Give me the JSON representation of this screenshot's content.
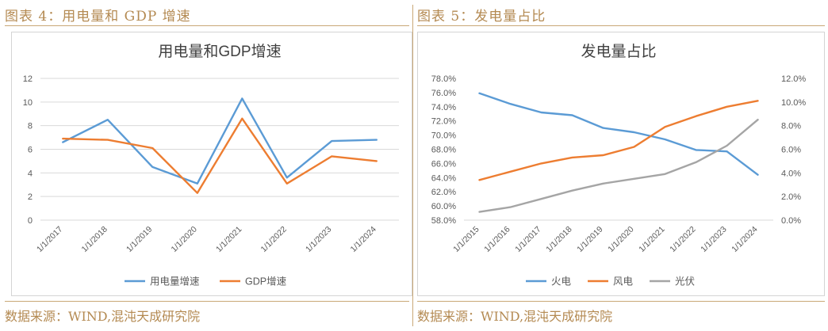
{
  "figures": [
    {
      "heading": "图表 4：用电量和 GDP 增速",
      "source": "数据来源：WIND,混沌天成研究院"
    },
    {
      "heading": "图表 5：发电量占比",
      "source": "数据来源：WIND,混沌天成研究院"
    }
  ],
  "chart_data": [
    {
      "type": "line",
      "title": "用电量和GDP增速",
      "categories": [
        "1/1/2017",
        "1/1/2018",
        "1/1/2019",
        "1/1/2020",
        "1/1/2021",
        "1/1/2022",
        "1/1/2023",
        "1/1/2024"
      ],
      "y_ticks": [
        "0",
        "2",
        "4",
        "6",
        "8",
        "10",
        "12"
      ],
      "ylim": [
        0,
        12
      ],
      "grid": true,
      "legend_position": "bottom",
      "series": [
        {
          "name": "用电量增速",
          "color": "#5b9bd5",
          "axis": "left",
          "values": [
            6.6,
            8.5,
            4.5,
            3.1,
            10.3,
            3.6,
            6.7,
            6.8
          ]
        },
        {
          "name": "GDP增速",
          "color": "#ed7d31",
          "axis": "left",
          "values": [
            6.9,
            6.8,
            6.1,
            2.3,
            8.6,
            3.1,
            5.4,
            5.0
          ]
        }
      ]
    },
    {
      "type": "line",
      "title": "发电量占比",
      "categories": [
        "1/1/2015",
        "1/1/2016",
        "1/1/2017",
        "1/1/2018",
        "1/1/2019",
        "1/1/2020",
        "1/1/2021",
        "1/1/2022",
        "1/1/2023",
        "1/1/2024"
      ],
      "y_ticks": [
        "58.0%",
        "60.0%",
        "62.0%",
        "64.0%",
        "66.0%",
        "68.0%",
        "70.0%",
        "72.0%",
        "74.0%",
        "76.0%",
        "78.0%"
      ],
      "y2_ticks": [
        "0.0%",
        "2.0%",
        "4.0%",
        "6.0%",
        "8.0%",
        "10.0%",
        "12.0%"
      ],
      "ylim": [
        58,
        78
      ],
      "y2lim": [
        0,
        12
      ],
      "grid": false,
      "legend_position": "bottom",
      "series": [
        {
          "name": "火电",
          "color": "#5b9bd5",
          "axis": "left",
          "values": [
            75.9,
            74.4,
            73.2,
            72.8,
            71.0,
            70.4,
            69.4,
            67.9,
            67.7,
            64.4
          ]
        },
        {
          "name": "风电",
          "color": "#ed7d31",
          "axis": "right",
          "values": [
            3.4,
            4.1,
            4.8,
            5.3,
            5.5,
            6.2,
            7.9,
            8.8,
            9.6,
            10.1
          ]
        },
        {
          "name": "光伏",
          "color": "#a5a5a5",
          "axis": "right",
          "values": [
            0.7,
            1.1,
            1.8,
            2.5,
            3.1,
            3.5,
            3.9,
            4.9,
            6.3,
            8.5
          ]
        }
      ]
    }
  ]
}
